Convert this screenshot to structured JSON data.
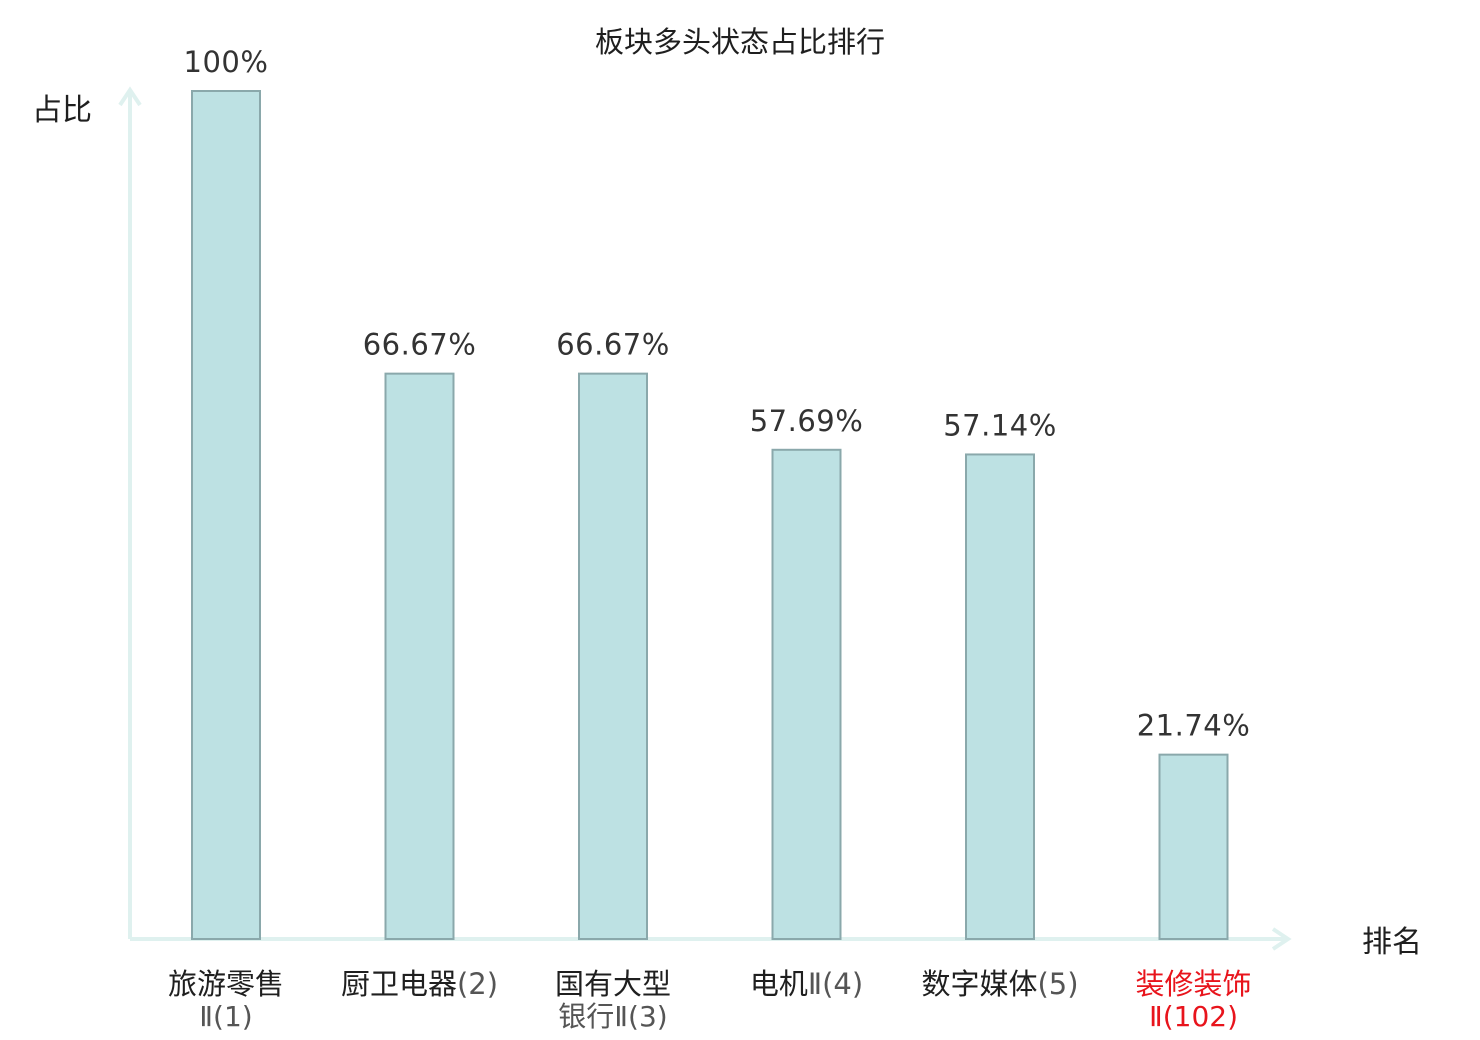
{
  "chart_data": {
    "type": "bar",
    "title": "板块多头状态占比排行",
    "ylabel": "占比",
    "xlabel": "排名",
    "ylim": [
      0,
      100
    ],
    "grid": false,
    "legend": "none",
    "categories": [
      {
        "line1": "旅游零售",
        "line2": "Ⅱ(1)",
        "highlight": false
      },
      {
        "line1": "厨卫电器",
        "line1_suffix": "(2)",
        "highlight": false
      },
      {
        "line1": "国有大型",
        "line2": "银行Ⅱ(3)",
        "highlight": false
      },
      {
        "line1": "电机",
        "line1_suffix": "Ⅱ(4)",
        "highlight": false
      },
      {
        "line1": "数字媒体",
        "line1_suffix": "(5)",
        "highlight": false
      },
      {
        "line1": "装修装饰",
        "line2": "Ⅱ(102)",
        "highlight": true
      }
    ],
    "values": [
      100,
      66.67,
      66.67,
      57.69,
      57.14,
      21.74
    ],
    "value_labels": [
      "100%",
      "66.67%",
      "66.67%",
      "57.69%",
      "57.14%",
      "21.74%"
    ]
  },
  "colors": {
    "bar_fill": "#bde1e3",
    "bar_stroke": "#8aa8ab",
    "axis": "#dff1ef",
    "highlight": "#e8141c"
  }
}
